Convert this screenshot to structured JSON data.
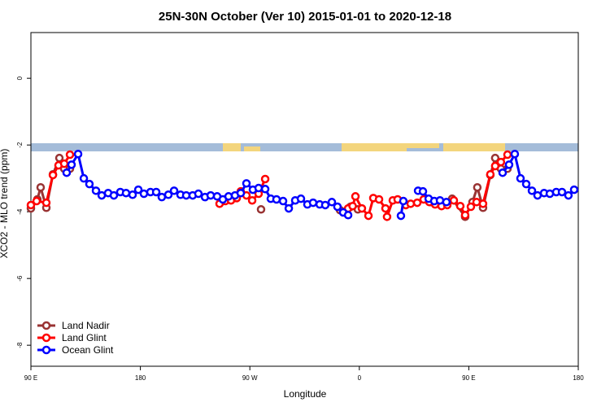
{
  "chart_data": {
    "type": "line",
    "title": "25N-30N October (Ver 10)   2015-01-01 to 2020-12-18",
    "x_label": "Longitude",
    "y_label": "XCO2 - MLO trend (ppm)",
    "xlim": [
      90,
      540
    ],
    "xticks": [
      {
        "value": 90,
        "label": "90 E"
      },
      {
        "value": 180,
        "label": "180"
      },
      {
        "value": 270,
        "label": "90 W"
      },
      {
        "value": 360,
        "label": "0"
      },
      {
        "value": 450,
        "label": "90 E"
      },
      {
        "value": 540,
        "label": "180"
      }
    ],
    "ylim": [
      -8.63,
      1.37
    ],
    "yticks": [
      0,
      -2,
      -4,
      -6,
      -8
    ],
    "legend": "bottom-left",
    "series": [
      {
        "name": "Land Nadir",
        "color": "#993333",
        "x": [
          90,
          95.3,
          98,
          102.7,
          108.1,
          113.4,
          117.4,
          122.1,
          null,
          279.2,
          null,
          344.1,
          352.8,
          358.8,
          null,
          418.9,
          null,
          436.3,
          447,
          453,
          457,
          461.7,
          467.7,
          471.7,
          476.4,
          481.8
        ],
        "values": [
          -3.9,
          -3.63,
          -3.27,
          -3.88,
          -2.88,
          -2.39,
          -2.71,
          -2.71,
          null,
          -3.93,
          null,
          -3.95,
          -3.85,
          -3.93,
          null,
          -3.71,
          null,
          -3.61,
          -4.15,
          -3.71,
          -3.27,
          -3.88,
          -2.9,
          -2.39,
          -2.71,
          -2.71
        ]
      },
      {
        "name": "Land Glint",
        "color": "#ff0000",
        "x": [
          90,
          94.7,
          102.7,
          108.1,
          112.7,
          117.4,
          122.1,
          null,
          245.1,
          249.8,
          254.5,
          259.2,
          262.5,
          267.2,
          271.9,
          277.2,
          282.6,
          null,
          350.8,
          354.5,
          356.8,
          362.1,
          367.5,
          371.5,
          376.2,
          381.5,
          382.8,
          387.5,
          391.5,
          398.2,
          402.2,
          407.6,
          412.9,
          417.6,
          422.3,
          427.6,
          432.3,
          437.7,
          443,
          447,
          451.7,
          456.4,
          461.7,
          467.7,
          471.7,
          476.4,
          481.8
        ],
        "values": [
          -3.8,
          -3.68,
          -3.73,
          -2.9,
          -2.61,
          -2.56,
          -2.29,
          null,
          -3.76,
          -3.68,
          -3.66,
          -3.59,
          -3.39,
          -3.51,
          -3.66,
          -3.46,
          -3.02,
          null,
          -3.9,
          -3.83,
          -3.54,
          -3.9,
          -4.12,
          -3.59,
          -3.63,
          -3.9,
          -4.15,
          -3.66,
          -3.63,
          -3.8,
          -3.76,
          -3.73,
          -3.63,
          -3.71,
          -3.78,
          -3.83,
          -3.8,
          -3.66,
          -3.83,
          -4.1,
          -3.85,
          -3.71,
          -3.76,
          -2.88,
          -2.63,
          -2.51,
          -2.29
        ]
      },
      {
        "name": "Ocean Glint",
        "color": "#0000ff",
        "x": [
          119.4,
          123.4,
          128.8,
          133.5,
          138.1,
          143.5,
          148.2,
          153.5,
          158.2,
          163.5,
          168.2,
          173.6,
          178.3,
          182.9,
          188.3,
          193,
          197.6,
          203,
          207.7,
          213,
          217.7,
          223,
          227.7,
          233.1,
          237.8,
          243.1,
          247.8,
          252.5,
          257.8,
          262.5,
          267.2,
          272.5,
          277.2,
          282.6,
          287.2,
          291.9,
          297.3,
          302,
          307.3,
          312,
          317.3,
          322,
          327.4,
          332,
          337.4,
          342,
          346.7,
          350.8,
          null,
          394.2,
          396.2,
          null,
          408.3,
          412.3,
          417,
          421.6,
          426.3,
          431.6,
          null,
          477.8,
          483.1,
          487.8,
          492.5,
          497.2,
          501.9,
          506.5,
          511.9,
          516.6,
          521.9,
          526.6,
          531.9,
          536.6
        ],
        "values": [
          -2.83,
          -2.59,
          -2.27,
          -3.0,
          -3.17,
          -3.37,
          -3.51,
          -3.44,
          -3.51,
          -3.41,
          -3.44,
          -3.49,
          -3.34,
          -3.46,
          -3.41,
          -3.41,
          -3.56,
          -3.49,
          -3.37,
          -3.49,
          -3.51,
          -3.51,
          -3.46,
          -3.56,
          -3.51,
          -3.54,
          -3.63,
          -3.54,
          -3.51,
          -3.44,
          -3.15,
          -3.34,
          -3.29,
          -3.32,
          -3.61,
          -3.63,
          -3.68,
          -3.9,
          -3.66,
          -3.61,
          -3.78,
          -3.73,
          -3.78,
          -3.8,
          -3.71,
          -3.85,
          -4.02,
          -4.1,
          null,
          -4.12,
          -3.68,
          null,
          -3.37,
          -3.39,
          -3.61,
          -3.68,
          -3.66,
          -3.71,
          null,
          -2.83,
          -2.59,
          -2.27,
          -3.0,
          -3.17,
          -3.37,
          -3.51,
          -3.44,
          -3.46,
          -3.41,
          -3.41,
          -3.51,
          -3.34
        ]
      }
    ]
  }
}
